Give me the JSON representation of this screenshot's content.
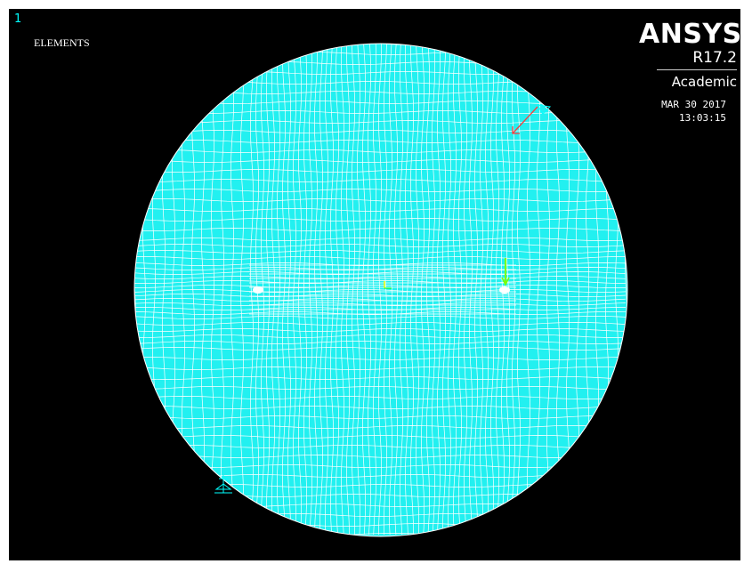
{
  "window": {
    "number": "1",
    "plot_type": "ELEMENTS"
  },
  "brand": {
    "name": "ANSYS",
    "version": "R17.2",
    "edition": "Academic"
  },
  "timestamp": {
    "date": "MAR 30 2017",
    "time": "13:03:15"
  },
  "colors": {
    "background": "#000000",
    "element_fill": "#22f0f0",
    "element_edge": "#ffffff",
    "arrow": "#ff3b3b",
    "constraint": "#00ffff",
    "load": "#7bff00"
  },
  "icons": {
    "view_triad": "coordinate-triad-icon",
    "support": "displacement-constraint-icon",
    "load": "force-arrow-icon"
  }
}
